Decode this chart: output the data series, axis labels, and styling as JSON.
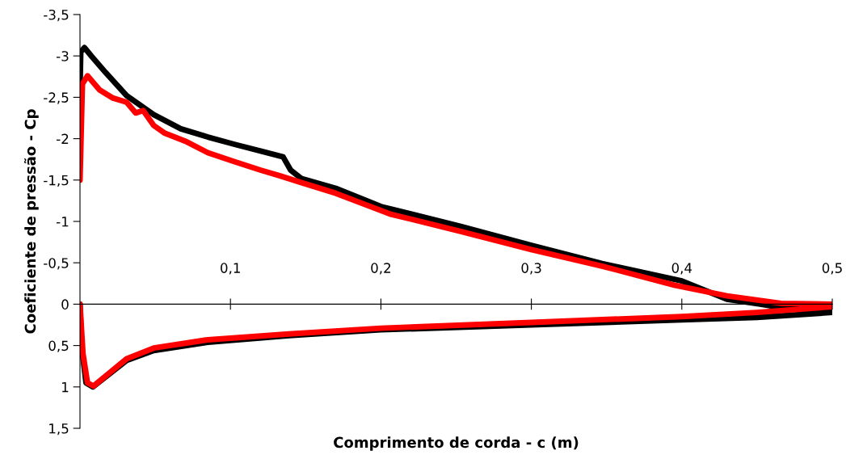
{
  "chart_data": {
    "type": "line",
    "xlabel": "Comprimento de corda - c (m)",
    "ylabel": "Coeficiente de pressão - Cp",
    "xlim": [
      0,
      0.5
    ],
    "ylim": [
      1.5,
      -3.5
    ],
    "xticks": [
      {
        "value": 0.1,
        "label": "0,1"
      },
      {
        "value": 0.2,
        "label": "0,2"
      },
      {
        "value": 0.3,
        "label": "0,3"
      },
      {
        "value": 0.4,
        "label": "0,4"
      },
      {
        "value": 0.5,
        "label": "0,5"
      }
    ],
    "yticks": [
      {
        "value": -3.5,
        "label": "-3,5"
      },
      {
        "value": -3,
        "label": "-3"
      },
      {
        "value": -2.5,
        "label": "-2,5"
      },
      {
        "value": -2,
        "label": "-2"
      },
      {
        "value": -1.5,
        "label": "-1,5"
      },
      {
        "value": -1,
        "label": "-1"
      },
      {
        "value": -0.5,
        "label": "-0,5"
      },
      {
        "value": 0,
        "label": "0"
      },
      {
        "value": 0.5,
        "label": "0,5"
      },
      {
        "value": 1,
        "label": "1"
      },
      {
        "value": 1.5,
        "label": "1,5"
      }
    ],
    "grid": false,
    "legend": false,
    "marker": "none",
    "line_style": "solid",
    "series": [
      {
        "color": "#000000",
        "x": [
          0.0,
          0.0005,
          0.003,
          0.0075,
          0.017,
          0.031,
          0.049,
          0.067,
          0.085,
          0.103,
          0.12,
          0.135,
          0.14,
          0.147,
          0.17,
          0.2,
          0.253,
          0.3,
          0.347,
          0.4,
          0.43,
          0.452,
          0.466,
          0.5
        ],
        "values": [
          -2.6,
          -3.05,
          -3.1,
          -3.0,
          -2.8,
          -2.52,
          -2.29,
          -2.12,
          -2.02,
          -1.93,
          -1.85,
          -1.78,
          -1.62,
          -1.52,
          -1.4,
          -1.18,
          -0.94,
          -0.71,
          -0.49,
          -0.28,
          -0.06,
          0.0,
          0.04,
          0.1
        ]
      },
      {
        "color": "#000000",
        "x": [
          0.0,
          0.001,
          0.004,
          0.0086,
          0.031,
          0.049,
          0.085,
          0.139,
          0.2,
          0.3,
          0.4,
          0.45,
          0.5
        ],
        "values": [
          0.0,
          0.5,
          0.95,
          1.0,
          0.68,
          0.56,
          0.46,
          0.38,
          0.31,
          0.25,
          0.19,
          0.16,
          0.1
        ]
      },
      {
        "color": "#ff0000",
        "x": [
          0.0,
          0.0016,
          0.005,
          0.013,
          0.022,
          0.031,
          0.037,
          0.042,
          0.049,
          0.056,
          0.07,
          0.085,
          0.103,
          0.12,
          0.133,
          0.147,
          0.17,
          0.206,
          0.253,
          0.3,
          0.347,
          0.395,
          0.43,
          0.466,
          0.5
        ],
        "values": [
          -1.5,
          -2.66,
          -2.76,
          -2.59,
          -2.49,
          -2.44,
          -2.31,
          -2.34,
          -2.16,
          -2.07,
          -1.97,
          -1.83,
          -1.72,
          -1.62,
          -1.55,
          -1.47,
          -1.34,
          -1.09,
          -0.88,
          -0.66,
          -0.46,
          -0.23,
          -0.1,
          -0.01,
          0.0
        ]
      },
      {
        "color": "#ff0000",
        "x": [
          0.0,
          0.002,
          0.005,
          0.009,
          0.031,
          0.049,
          0.085,
          0.139,
          0.2,
          0.3,
          0.4,
          0.45,
          0.5
        ],
        "values": [
          0.0,
          0.6,
          0.95,
          0.99,
          0.66,
          0.53,
          0.43,
          0.36,
          0.29,
          0.22,
          0.15,
          0.1,
          0.03
        ]
      }
    ]
  }
}
